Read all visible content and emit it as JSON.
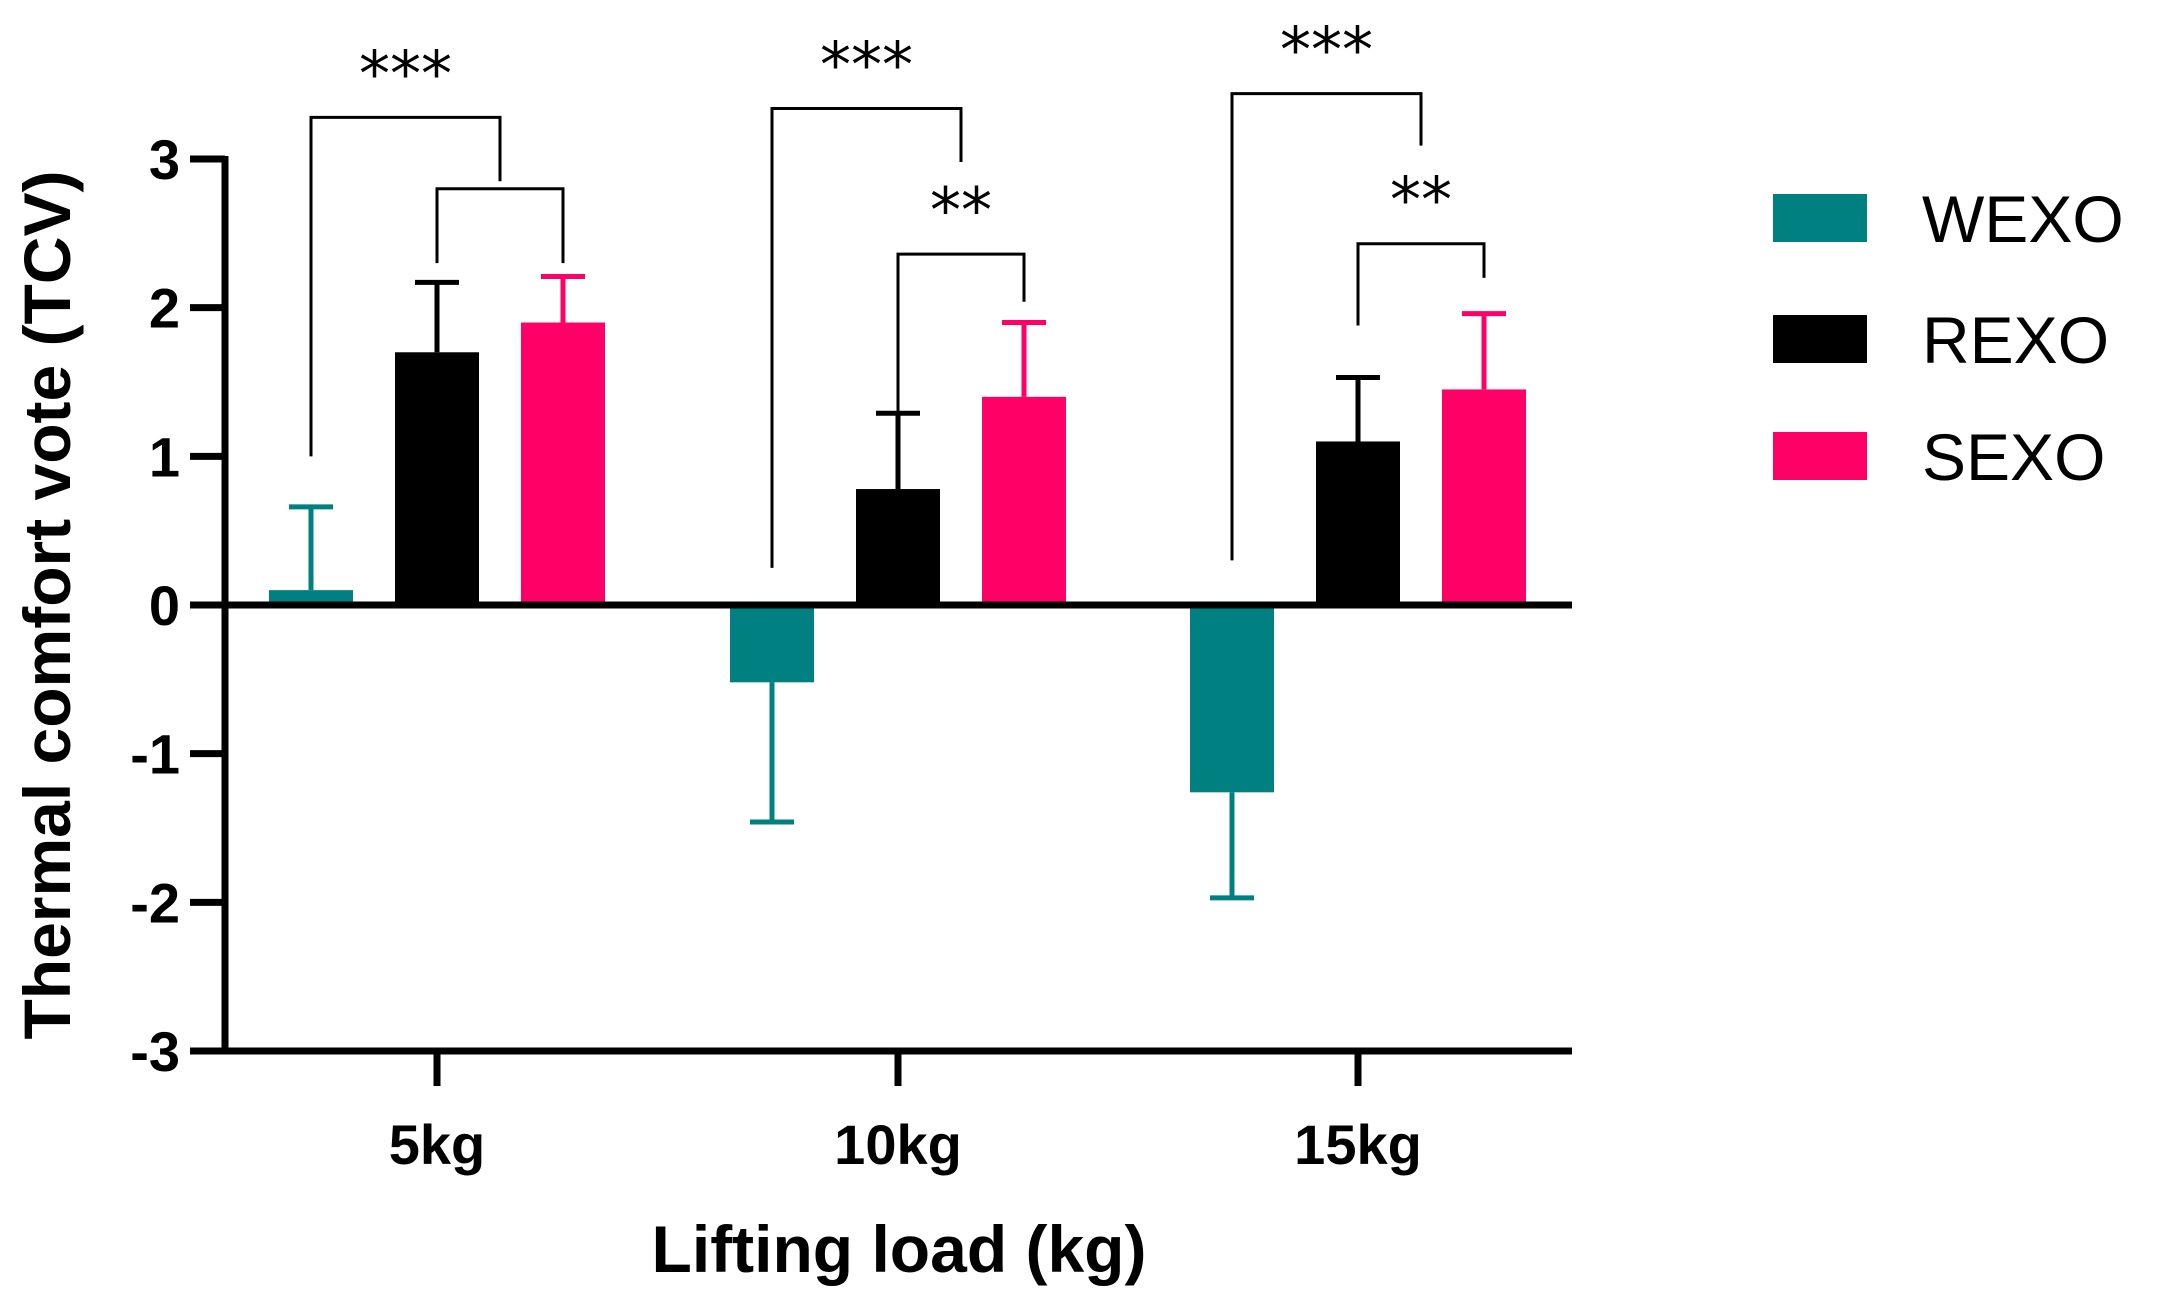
{
  "chart_data": {
    "type": "bar",
    "title": "",
    "xlabel": "Lifting load (kg)",
    "ylabel": "Thermal comfort vote (TCV)",
    "ylim": [
      -3,
      3
    ],
    "yticks": [
      "-3",
      "-2",
      "-1",
      "0",
      "1",
      "2",
      "3"
    ],
    "grid": false,
    "legend_position": "right",
    "categories": [
      "5kg",
      "10kg",
      "15kg"
    ],
    "series": [
      {
        "name": "WEXO",
        "color": "#008080",
        "values": [
          0.1,
          -0.52,
          -1.26
        ],
        "errors": [
          0.56,
          0.94,
          0.71
        ]
      },
      {
        "name": "REXO",
        "color": "#000000",
        "values": [
          1.7,
          0.78,
          1.1
        ],
        "errors": [
          0.47,
          0.51,
          0.43
        ]
      },
      {
        "name": "SEXO",
        "color": "#FF0066",
        "values": [
          1.9,
          1.4,
          1.45
        ],
        "errors": [
          0.31,
          0.5,
          0.51
        ]
      }
    ],
    "significance": [
      {
        "group": 0,
        "from": 0,
        "to": "1-2",
        "top": 3.28,
        "left_end": 1.0,
        "right_end": 2.85,
        "label": "***"
      },
      {
        "group": 0,
        "from": 1,
        "to": 2,
        "top": 2.8,
        "left_end": 2.3,
        "right_end": 2.3,
        "label": ""
      },
      {
        "group": 1,
        "from": 0,
        "to": "1-2",
        "top": 3.34,
        "left_end": 0.25,
        "right_end": 2.98,
        "label": "***"
      },
      {
        "group": 1,
        "from": 1,
        "to": 2,
        "top": 2.36,
        "left_end": 1.29,
        "right_end": 2.04,
        "label": "**"
      },
      {
        "group": 2,
        "from": 0,
        "to": "1-2",
        "top": 3.44,
        "left_end": 0.3,
        "right_end": 3.09,
        "label": "***"
      },
      {
        "group": 2,
        "from": 1,
        "to": 2,
        "top": 2.43,
        "left_end": 1.88,
        "right_end": 2.2,
        "label": "**"
      }
    ]
  }
}
